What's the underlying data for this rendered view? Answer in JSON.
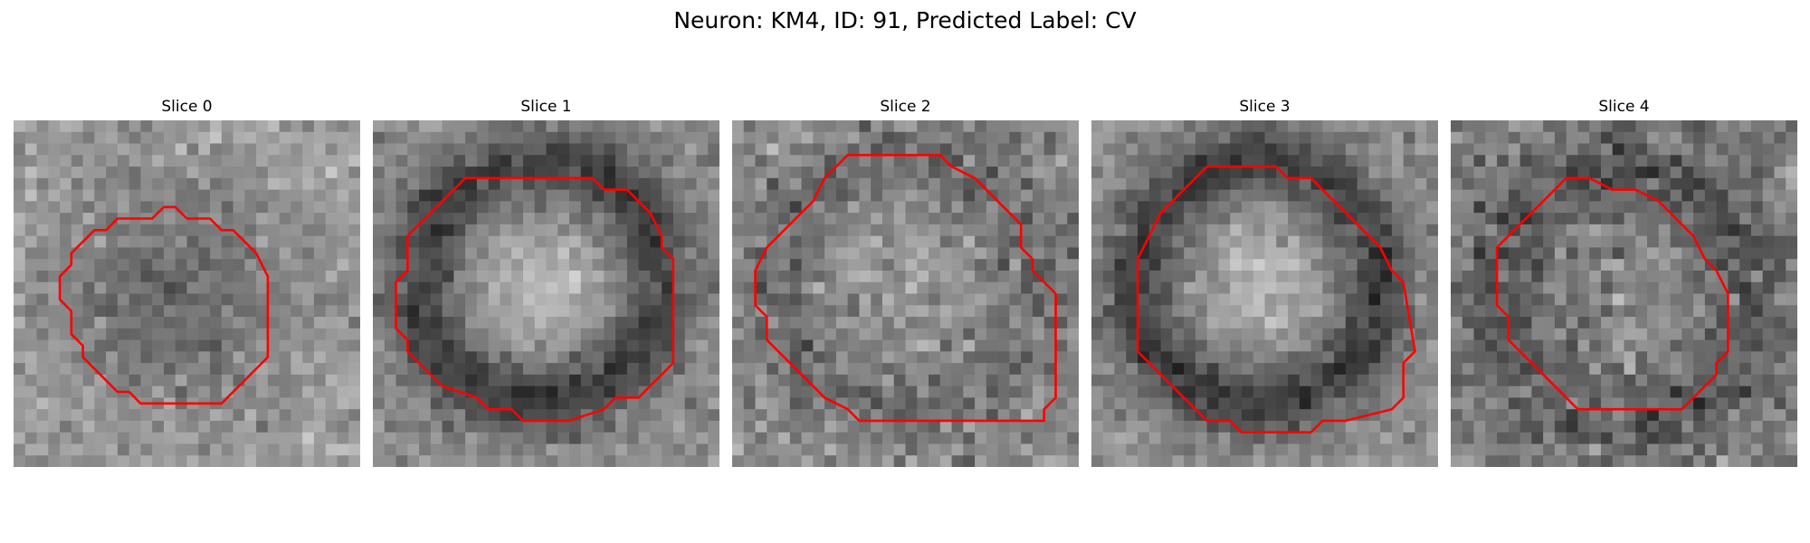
{
  "figure": {
    "title": "Neuron: KM4, ID: 91, Predicted Label: CV",
    "contour_color": "#ff0000",
    "colormap": "gray",
    "panels": [
      {
        "title": "Slice 0",
        "image_name": "slice-0-image",
        "feature": "dark-center-blob"
      },
      {
        "title": "Slice 1",
        "image_name": "slice-1-image",
        "feature": "bright-center-dark-ring"
      },
      {
        "title": "Slice 2",
        "image_name": "slice-2-image",
        "feature": "faint-ring-noisy"
      },
      {
        "title": "Slice 3",
        "image_name": "slice-3-image",
        "feature": "bright-center-dark-ring"
      },
      {
        "title": "Slice 4",
        "image_name": "slice-4-image",
        "feature": "noisy-dark-surround"
      }
    ]
  }
}
